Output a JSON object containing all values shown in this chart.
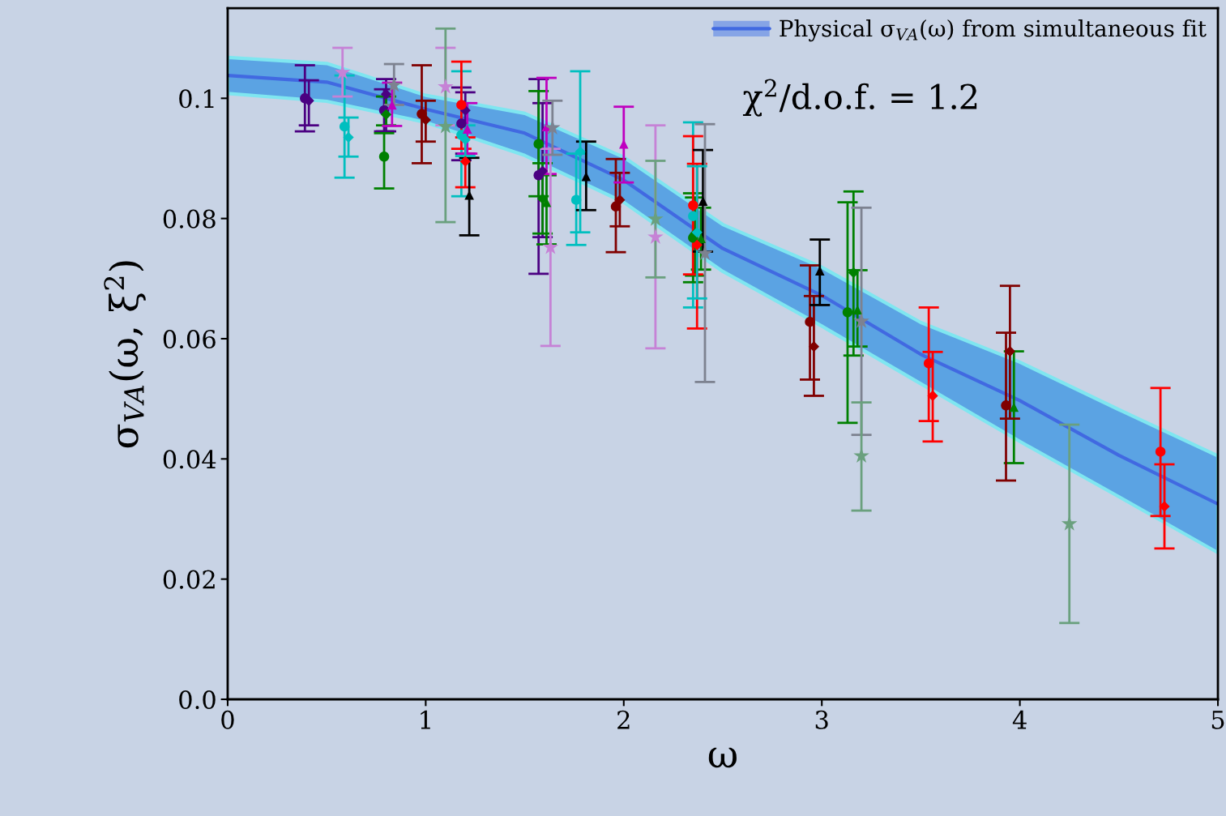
{
  "chart_data": {
    "type": "scatter",
    "xlabel": "ω",
    "ylabel": "σ$_{VA}$(ω, ξ$^{2}$)",
    "annotations": [
      "χ$^{2}$/d.o.f. = 1.2"
    ],
    "xlim": [
      0,
      5
    ],
    "xticks": [
      0,
      1,
      2,
      3,
      4,
      5
    ],
    "ylim": [
      0,
      0.115
    ],
    "yticks": [
      {
        "value": 0,
        "label": "0.0"
      },
      0.02,
      0.04,
      0.06,
      0.08,
      0.1
    ],
    "grid": false,
    "legend": "top right",
    "series": [
      {
        "type": "line",
        "name": "Physical σ$_{VA}$(ω) from simultaneous fit",
        "color": "#4169e1",
        "marker": "none",
        "x": [
          0,
          0.5,
          1,
          1.5,
          2,
          2.5,
          3,
          3.5,
          4,
          4.5,
          5
        ],
        "values": [
          0.1038,
          0.1027,
          0.0982,
          0.0942,
          0.0864,
          0.075,
          0.0672,
          0.0574,
          0.0497,
          0.0406,
          0.0325
        ],
        "lower": [
          0.1008,
          0.0995,
          0.096,
          0.0905,
          0.0827,
          0.0712,
          0.0621,
          0.0525,
          0.0429,
          0.0337,
          0.0244
        ],
        "upper": [
          0.1068,
          0.1058,
          0.1005,
          0.0975,
          0.0902,
          0.079,
          0.0719,
          0.0627,
          0.0561,
          0.0482,
          0.0405
        ]
      },
      {
        "color": "#4b0082",
        "marker": "circle",
        "x": [
          0.39,
          0.79,
          1.18,
          1.57
        ],
        "values": [
          0.1,
          0.098,
          0.0958,
          0.0872
        ],
        "errors": [
          [
            0.0945,
            0.1055
          ],
          [
            0.0945,
            0.1015
          ],
          [
            0.0897,
            0.1018
          ],
          [
            0.0708,
            0.1032
          ]
        ]
      },
      {
        "color": "#4b0082",
        "marker": "diamond",
        "x": [
          0.41,
          0.8,
          1.2,
          1.59
        ],
        "values": [
          0.0996,
          0.1007,
          0.098,
          0.0879
        ],
        "errors": [
          [
            0.0955,
            0.103
          ],
          [
            0.0945,
            0.1032
          ],
          [
            0.0908,
            0.101
          ],
          [
            0.0769,
            0.0992
          ]
        ]
      },
      {
        "color": "#00bfbf",
        "marker": "circle",
        "x": [
          0.59,
          1.18,
          1.76,
          2.35
        ],
        "values": [
          0.0953,
          0.0939,
          0.0831,
          0.0804
        ],
        "errors": [
          [
            0.0868,
            0.1038
          ],
          [
            0.0837,
            0.1045
          ],
          [
            0.0756,
            0.0908
          ],
          [
            0.0652,
            0.096
          ]
        ]
      },
      {
        "color": "#008000",
        "marker": "circle",
        "x": [
          0.79,
          1.57,
          2.35,
          3.13
        ],
        "values": [
          0.0903,
          0.0924,
          0.0768,
          0.0644
        ],
        "errors": [
          [
            0.085,
            0.0942
          ],
          [
            0.0837,
            0.1012
          ],
          [
            0.0694,
            0.0842
          ],
          [
            0.046,
            0.0827
          ]
        ]
      },
      {
        "color": "#008000",
        "marker": "diamond",
        "x": [
          0.8,
          1.59,
          2.36,
          3.16
        ],
        "values": [
          0.0973,
          0.0833,
          0.0775,
          0.071
        ],
        "errors": [
          [
            0.0955,
            0.1003
          ],
          [
            0.0775,
            0.0892
          ],
          [
            0.0705,
            0.0835
          ],
          [
            0.0572,
            0.0845
          ]
        ]
      },
      {
        "color": "#008000",
        "marker": "triangle",
        "x": [
          1.61,
          2.39,
          3.18,
          3.97
        ],
        "values": [
          0.0827,
          0.0767,
          0.0648,
          0.0486
        ],
        "errors": [
          [
            0.0757,
            0.0872
          ],
          [
            0.0715,
            0.0818
          ],
          [
            0.0587,
            0.0714
          ],
          [
            0.0393,
            0.0579
          ]
        ]
      },
      {
        "color": "#800000",
        "marker": "circle",
        "x": [
          0.98,
          1.96,
          2.94,
          3.93
        ],
        "values": [
          0.0974,
          0.082,
          0.0628,
          0.0489
        ],
        "errors": [
          [
            0.0892,
            0.1055
          ],
          [
            0.0744,
            0.0899
          ],
          [
            0.0532,
            0.0722
          ],
          [
            0.0364,
            0.061
          ]
        ]
      },
      {
        "color": "#800000",
        "marker": "diamond",
        "x": [
          1.0,
          1.98,
          2.96,
          3.95
        ],
        "values": [
          0.0964,
          0.0831,
          0.0587,
          0.0579
        ],
        "errors": [
          [
            0.0928,
            0.0996
          ],
          [
            0.0787,
            0.0876
          ],
          [
            0.0505,
            0.0671
          ],
          [
            0.0467,
            0.0688
          ]
        ]
      },
      {
        "color": "#ff0000",
        "marker": "circle",
        "x": [
          1.18,
          2.35,
          3.54,
          4.71
        ],
        "values": [
          0.0989,
          0.0822,
          0.0559,
          0.0412
        ],
        "errors": [
          [
            0.0916,
            0.1061
          ],
          [
            0.0707,
            0.0937
          ],
          [
            0.0463,
            0.0652
          ],
          [
            0.0305,
            0.0518
          ]
        ]
      },
      {
        "color": "#ff0000",
        "marker": "diamond",
        "x": [
          1.2,
          2.37,
          3.56,
          4.73
        ],
        "values": [
          0.0895,
          0.0756,
          0.0505,
          0.0321
        ],
        "errors": [
          [
            0.0852,
            0.0935
          ],
          [
            0.0617,
            0.0891
          ],
          [
            0.0429,
            0.0578
          ],
          [
            0.0251,
            0.0391
          ]
        ]
      },
      {
        "color": "#bf00bf",
        "marker": "triangle",
        "x": [
          0.83,
          1.21,
          1.61,
          2.0
        ],
        "values": [
          0.0989,
          0.0949,
          0.0953,
          0.0924
        ],
        "errors": [
          [
            0.0954,
            0.1026
          ],
          [
            0.0908,
            0.0992
          ],
          [
            0.0874,
            0.1034
          ],
          [
            0.086,
            0.0986
          ]
        ]
      },
      {
        "color": "#000000",
        "marker": "triangle",
        "x": [
          1.22,
          1.81,
          2.4,
          2.99
        ],
        "values": [
          0.0839,
          0.087,
          0.0829,
          0.0713
        ],
        "errors": [
          [
            0.0772,
            0.0901
          ],
          [
            0.0814,
            0.0928
          ],
          [
            0.0745,
            0.0914
          ],
          [
            0.0656,
            0.0765
          ]
        ]
      },
      {
        "color": "#c682d6",
        "marker": "star",
        "x": [
          0.58,
          1.1,
          1.63,
          2.16
        ],
        "values": [
          0.1043,
          0.1019,
          0.0752,
          0.0769
        ],
        "errors": [
          [
            0.1003,
            0.1084
          ],
          [
            0.0955,
            0.1084
          ],
          [
            0.0588,
            0.0916
          ],
          [
            0.0584,
            0.0955
          ]
        ]
      },
      {
        "color": "#7d8290",
        "marker": "star",
        "x": [
          0.84,
          1.64,
          2.41,
          3.2
        ],
        "values": [
          0.1022,
          0.0951,
          0.0742,
          0.0629
        ],
        "errors": [
          [
            0.0989,
            0.1057
          ],
          [
            0.0906,
            0.0996
          ],
          [
            0.0528,
            0.0957
          ],
          [
            0.044,
            0.0818
          ]
        ]
      },
      {
        "color": "#6aa07e",
        "marker": "star",
        "x": [
          1.1,
          2.16,
          3.2,
          4.25
        ],
        "values": [
          0.0953,
          0.0799,
          0.0405,
          0.0292
        ],
        "errors": [
          [
            0.0794,
            0.1116
          ],
          [
            0.0702,
            0.0896
          ],
          [
            0.0314,
            0.0494
          ],
          [
            0.0127,
            0.0457
          ]
        ]
      },
      {
        "color": "#00bfbf",
        "marker": "diamond",
        "x": [
          0.61,
          1.2,
          1.78,
          2.37
        ],
        "values": [
          0.0935,
          0.0931,
          0.0911,
          0.0777
        ],
        "errors": [
          [
            0.0903,
            0.0968
          ],
          [
            0.0904,
            0.0955
          ],
          [
            0.0777,
            0.1045
          ],
          [
            0.0667,
            0.0887
          ]
        ]
      }
    ]
  }
}
